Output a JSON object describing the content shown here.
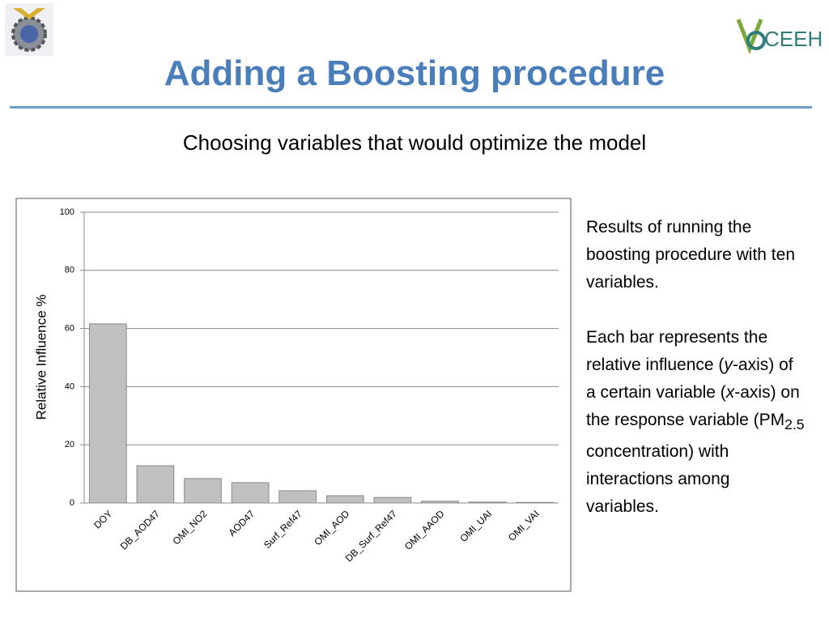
{
  "title": "Adding a Boosting procedure",
  "subtitle": "Choosing variables that would optimize the model",
  "logo_text": "CEEH",
  "chart_data": {
    "type": "bar",
    "y_label": "Relative Influence %",
    "categories": [
      "DOY",
      "DB_AOD47",
      "OMI_NO2",
      "AOD47",
      "Surf_Ref47",
      "OMI_AOD",
      "DB_Surf_Ref47",
      "OMI_AAOD",
      "OMI_UAI",
      "OMI_VAI"
    ],
    "values": [
      61.6,
      12.8,
      8.4,
      7.0,
      4.2,
      2.5,
      1.9,
      0.6,
      0.3,
      0.2
    ],
    "color": "#c0c0c0",
    "ylim": [
      0,
      100
    ],
    "yticks": [
      0,
      20,
      40,
      60,
      80,
      100
    ],
    "grid": true
  },
  "notes": {
    "paragraph1": "Results of running the boosting procedure with ten variables.",
    "paragraph2": [
      "Each bar represents the relative influence (",
      "y",
      "-axis) of a certain variable (",
      "x",
      "-axis) on the response variable (PM",
      "2.5",
      " concentration) with interactions among variables."
    ]
  }
}
